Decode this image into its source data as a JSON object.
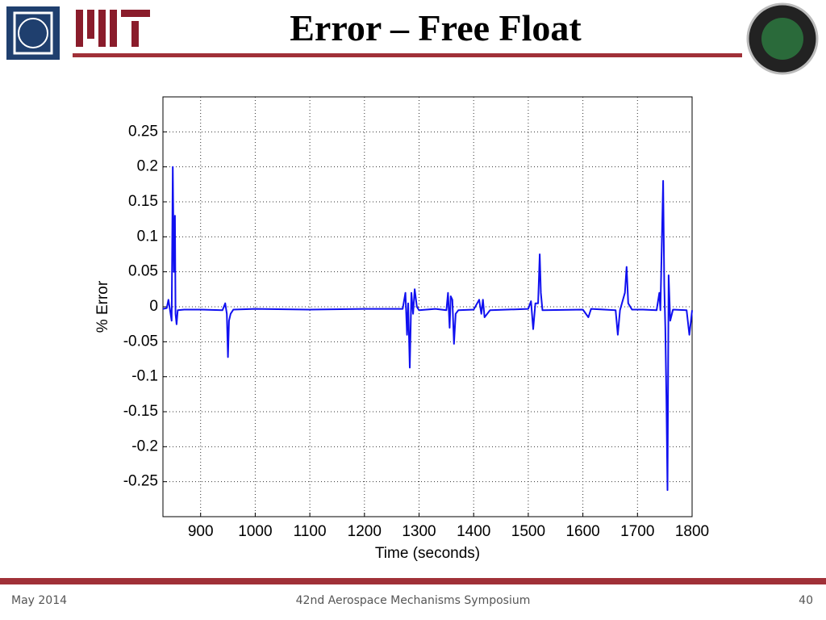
{
  "slide": {
    "title": "Error – Free Float",
    "footer": {
      "left": "May 2014",
      "center": "42nd Aerospace Mechanisms Symposium",
      "right": "40"
    }
  },
  "chart_data": {
    "type": "line",
    "xlabel": "Time (seconds)",
    "ylabel": "% Error",
    "x": [
      831,
      838,
      841,
      844,
      847,
      849,
      851,
      853,
      854,
      856,
      858,
      870,
      900,
      940,
      945,
      948,
      950,
      952,
      955,
      960,
      1000,
      1100,
      1200,
      1270,
      1275,
      1278,
      1280,
      1283,
      1286,
      1289,
      1292,
      1296,
      1300,
      1330,
      1350,
      1353,
      1356,
      1358,
      1361,
      1364,
      1367,
      1372,
      1400,
      1410,
      1414,
      1417,
      1420,
      1430,
      1500,
      1505,
      1509,
      1513,
      1518,
      1521,
      1523,
      1526,
      1600,
      1610,
      1615,
      1660,
      1664,
      1668,
      1677,
      1680,
      1683,
      1690,
      1710,
      1735,
      1740,
      1742,
      1747,
      1749,
      1751,
      1753,
      1755,
      1757,
      1760,
      1765,
      1790,
      1795,
      1798,
      1800
    ],
    "series": [
      {
        "color": "#1010f0",
        "values": [
          -0.003,
          -0.002,
          0.01,
          -0.005,
          -0.02,
          0.2,
          0.05,
          0.13,
          -0.01,
          -0.025,
          -0.005,
          -0.004,
          -0.004,
          -0.005,
          0.005,
          -0.01,
          -0.072,
          -0.02,
          -0.01,
          -0.004,
          -0.003,
          -0.004,
          -0.003,
          -0.003,
          0.02,
          -0.04,
          0.005,
          -0.087,
          0.02,
          -0.01,
          0.025,
          0.0,
          -0.005,
          -0.003,
          -0.005,
          0.02,
          -0.03,
          0.015,
          0.01,
          -0.053,
          -0.01,
          -0.005,
          -0.004,
          0.01,
          -0.01,
          0.01,
          -0.015,
          -0.005,
          -0.003,
          0.008,
          -0.032,
          0.005,
          0.005,
          0.075,
          0.02,
          -0.005,
          -0.004,
          -0.015,
          -0.003,
          -0.005,
          -0.04,
          -0.005,
          0.02,
          0.057,
          0.005,
          -0.004,
          -0.004,
          -0.005,
          0.02,
          -0.005,
          0.18,
          0.03,
          -0.03,
          -0.135,
          -0.262,
          0.045,
          -0.02,
          -0.004,
          -0.005,
          -0.04,
          -0.02,
          -0.005
        ]
      }
    ],
    "xlim": [
      831,
      1800
    ],
    "xticks": [
      900,
      1000,
      1100,
      1200,
      1300,
      1400,
      1500,
      1600,
      1700,
      1800
    ],
    "ylim": [
      -0.3,
      0.3
    ],
    "yticks": [
      -0.25,
      -0.2,
      -0.15,
      -0.1,
      -0.05,
      0,
      0.05,
      0.1,
      0.15,
      0.2,
      0.25
    ],
    "grid": true
  }
}
